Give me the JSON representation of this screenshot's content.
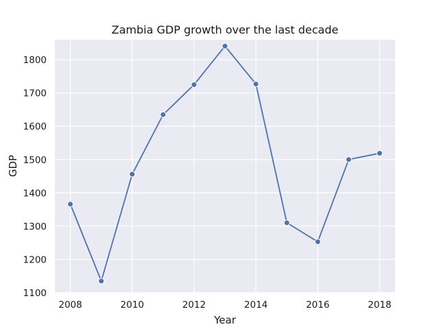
{
  "chart_data": {
    "type": "line",
    "title": "Zambia GDP growth over the last decade",
    "xlabel": "Year",
    "ylabel": "GDP",
    "x": [
      2008,
      2009,
      2010,
      2011,
      2012,
      2013,
      2014,
      2015,
      2016,
      2017,
      2018
    ],
    "series": [
      {
        "values": [
          1366,
          1135,
          1456,
          1635,
          1725,
          1841,
          1727,
          1310,
          1253,
          1500,
          1519
        ]
      }
    ],
    "xlim": [
      2007.5,
      2018.5
    ],
    "ylim": [
      1100,
      1860
    ],
    "xticks": [
      2008,
      2010,
      2012,
      2014,
      2016,
      2018
    ],
    "yticks": [
      1100,
      1200,
      1300,
      1400,
      1500,
      1600,
      1700,
      1800
    ],
    "grid": true,
    "colors": {
      "background": "#eaeaf2",
      "grid": "#ffffff",
      "line": "#4c72b0"
    }
  }
}
